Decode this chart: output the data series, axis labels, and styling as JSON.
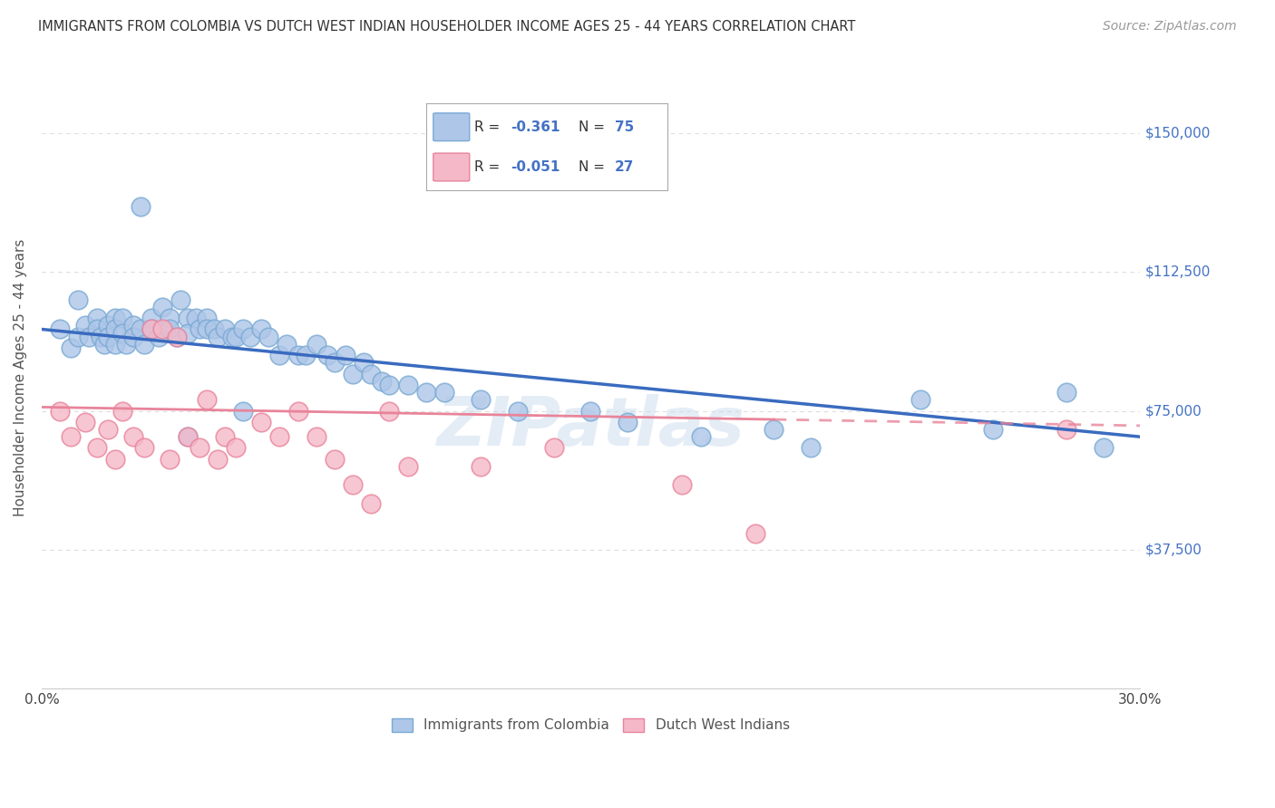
{
  "title": "IMMIGRANTS FROM COLOMBIA VS DUTCH WEST INDIAN HOUSEHOLDER INCOME AGES 25 - 44 YEARS CORRELATION CHART",
  "source": "Source: ZipAtlas.com",
  "ylabel": "Householder Income Ages 25 - 44 years",
  "ytick_labels": [
    "$37,500",
    "$75,000",
    "$112,500",
    "$150,000"
  ],
  "ytick_values": [
    37500,
    75000,
    112500,
    150000
  ],
  "ymin": 0,
  "ymax": 168000,
  "xmin": 0.0,
  "xmax": 0.3,
  "colombia_color": "#aec6e8",
  "colombia_edge": "#7aaad4",
  "dwi_color": "#f5b8c8",
  "dwi_edge": "#e8849a",
  "trendline_colombia_color": "#3a6bbf",
  "trendline_dwi_color": "#e8849a",
  "grid_color": "#dddddd",
  "background_color": "#ffffff",
  "watermark": "ZIPatlas",
  "colombia_x": [
    0.005,
    0.008,
    0.01,
    0.01,
    0.012,
    0.013,
    0.015,
    0.015,
    0.016,
    0.017,
    0.018,
    0.018,
    0.02,
    0.02,
    0.02,
    0.022,
    0.022,
    0.023,
    0.025,
    0.025,
    0.027,
    0.027,
    0.028,
    0.03,
    0.03,
    0.032,
    0.033,
    0.035,
    0.035,
    0.037,
    0.038,
    0.04,
    0.04,
    0.042,
    0.043,
    0.045,
    0.045,
    0.047,
    0.048,
    0.05,
    0.052,
    0.053,
    0.055,
    0.057,
    0.06,
    0.062,
    0.065,
    0.067,
    0.07,
    0.072,
    0.075,
    0.078,
    0.08,
    0.083,
    0.085,
    0.088,
    0.09,
    0.093,
    0.095,
    0.1,
    0.105,
    0.11,
    0.12,
    0.13,
    0.15,
    0.16,
    0.18,
    0.2,
    0.21,
    0.24,
    0.26,
    0.28,
    0.29,
    0.055,
    0.04
  ],
  "colombia_y": [
    97000,
    92000,
    105000,
    95000,
    98000,
    95000,
    100000,
    97000,
    95000,
    93000,
    98000,
    95000,
    100000,
    97000,
    93000,
    100000,
    96000,
    93000,
    98000,
    95000,
    130000,
    97000,
    93000,
    100000,
    97000,
    95000,
    103000,
    100000,
    97000,
    95000,
    105000,
    100000,
    96000,
    100000,
    97000,
    100000,
    97000,
    97000,
    95000,
    97000,
    95000,
    95000,
    97000,
    95000,
    97000,
    95000,
    90000,
    93000,
    90000,
    90000,
    93000,
    90000,
    88000,
    90000,
    85000,
    88000,
    85000,
    83000,
    82000,
    82000,
    80000,
    80000,
    78000,
    75000,
    75000,
    72000,
    68000,
    70000,
    65000,
    78000,
    70000,
    80000,
    65000,
    75000,
    68000
  ],
  "dwi_x": [
    0.005,
    0.008,
    0.012,
    0.015,
    0.018,
    0.02,
    0.022,
    0.025,
    0.028,
    0.03,
    0.033,
    0.035,
    0.037,
    0.04,
    0.043,
    0.045,
    0.048,
    0.05,
    0.053,
    0.06,
    0.065,
    0.07,
    0.075,
    0.08,
    0.085,
    0.09,
    0.095,
    0.1,
    0.12,
    0.14,
    0.175,
    0.195,
    0.28
  ],
  "dwi_y": [
    75000,
    68000,
    72000,
    65000,
    70000,
    62000,
    75000,
    68000,
    65000,
    97000,
    97000,
    62000,
    95000,
    68000,
    65000,
    78000,
    62000,
    68000,
    65000,
    72000,
    68000,
    75000,
    68000,
    62000,
    55000,
    50000,
    75000,
    60000,
    60000,
    65000,
    55000,
    42000,
    70000
  ]
}
